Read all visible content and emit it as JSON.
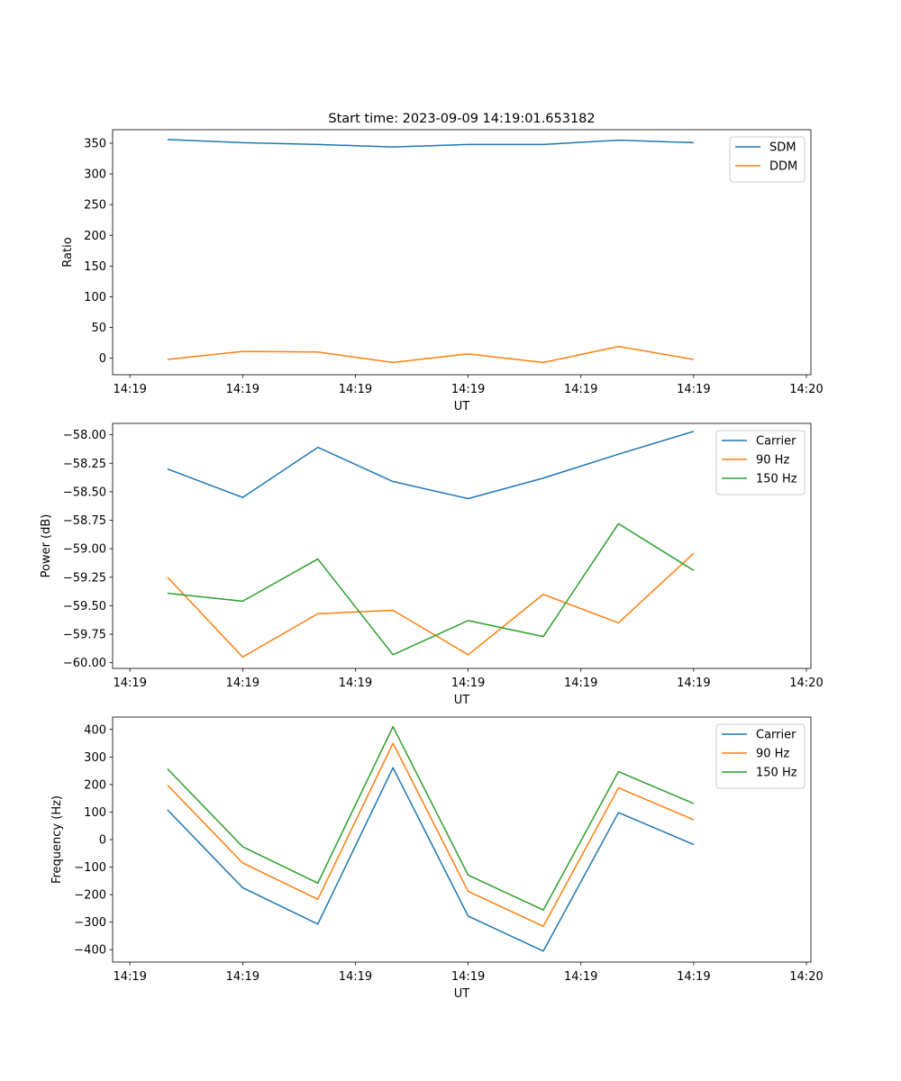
{
  "figure_title": "Start time: 2023-09-09 14:19:01.653182",
  "colors": {
    "blue": "#1f77b4",
    "orange": "#ff7f0e",
    "green": "#2ca02c"
  },
  "chart_data": [
    {
      "type": "line",
      "title": "Start time: 2023-09-09 14:19:01.653182",
      "xlabel": "UT",
      "ylabel": "Ratio",
      "x": [
        1,
        2,
        3,
        4,
        5,
        6,
        7,
        8
      ],
      "xlim": [
        0.27,
        9.56
      ],
      "xticks": [
        0.5,
        2,
        3.5,
        5,
        6.5,
        8,
        9.5
      ],
      "xtick_labels": [
        "14:19",
        "14:19",
        "14:19",
        "14:19",
        "14:19",
        "14:19",
        "14:20"
      ],
      "ylim": [
        -27,
        372
      ],
      "yticks": [
        0,
        50,
        100,
        150,
        200,
        250,
        300,
        350
      ],
      "ytick_labels": [
        "0",
        "50",
        "100",
        "150",
        "200",
        "250",
        "300",
        "350"
      ],
      "legend_position": "top-right",
      "series": [
        {
          "name": "SDM",
          "color": "#1f77b4",
          "values": [
            356,
            351,
            348,
            344,
            348,
            348,
            355,
            351
          ]
        },
        {
          "name": "DDM",
          "color": "#ff7f0e",
          "values": [
            -2,
            11,
            10,
            -7,
            7,
            -7,
            19,
            -2
          ]
        }
      ]
    },
    {
      "type": "line",
      "title": "",
      "xlabel": "UT",
      "ylabel": "Power (dB)",
      "x": [
        1,
        2,
        3,
        4,
        5,
        6,
        7,
        8
      ],
      "xlim": [
        0.27,
        9.56
      ],
      "xticks": [
        0.5,
        2,
        3.5,
        5,
        6.5,
        8,
        9.5
      ],
      "xtick_labels": [
        "14:19",
        "14:19",
        "14:19",
        "14:19",
        "14:19",
        "14:19",
        "14:20"
      ],
      "ylim": [
        -60.05,
        -57.9
      ],
      "yticks": [
        -60.0,
        -59.75,
        -59.5,
        -59.25,
        -59.0,
        -58.75,
        -58.5,
        -58.25,
        -58.0
      ],
      "ytick_labels": [
        "−60.00",
        "−59.75",
        "−59.50",
        "−59.25",
        "−59.00",
        "−58.75",
        "−58.50",
        "−58.25",
        "−58.00"
      ],
      "legend_position": "top-right",
      "series": [
        {
          "name": "Carrier",
          "color": "#1f77b4",
          "values": [
            -58.3,
            -58.55,
            -58.11,
            -58.41,
            -58.56,
            -58.38,
            -58.17,
            -57.97
          ]
        },
        {
          "name": "90 Hz",
          "color": "#ff7f0e",
          "values": [
            -59.25,
            -59.95,
            -59.57,
            -59.54,
            -59.93,
            -59.4,
            -59.65,
            -59.04
          ]
        },
        {
          "name": "150 Hz",
          "color": "#2ca02c",
          "values": [
            -59.39,
            -59.46,
            -59.09,
            -59.93,
            -59.63,
            -59.77,
            -58.78,
            -59.19
          ]
        }
      ]
    },
    {
      "type": "line",
      "title": "",
      "xlabel": "UT",
      "ylabel": "Frequency (Hz)",
      "x": [
        1,
        2,
        3,
        4,
        5,
        6,
        7,
        8
      ],
      "xlim": [
        0.27,
        9.56
      ],
      "xticks": [
        0.5,
        2,
        3.5,
        5,
        6.5,
        8,
        9.5
      ],
      "xtick_labels": [
        "14:19",
        "14:19",
        "14:19",
        "14:19",
        "14:19",
        "14:19",
        "14:20"
      ],
      "ylim": [
        -445,
        445
      ],
      "yticks": [
        -400,
        -300,
        -200,
        -100,
        0,
        100,
        200,
        300,
        400
      ],
      "ytick_labels": [
        "−400",
        "−300",
        "−200",
        "−100",
        "0",
        "100",
        "200",
        "300",
        "400"
      ],
      "legend_position": "top-right",
      "series": [
        {
          "name": "Carrier",
          "color": "#1f77b4",
          "values": [
            108,
            -175,
            -307,
            261,
            -278,
            -405,
            98,
            -18
          ]
        },
        {
          "name": "90 Hz",
          "color": "#ff7f0e",
          "values": [
            198,
            -85,
            -217,
            350,
            -188,
            -315,
            188,
            72
          ]
        },
        {
          "name": "150 Hz",
          "color": "#2ca02c",
          "values": [
            257,
            -26,
            -158,
            410,
            -129,
            -256,
            247,
            131
          ]
        }
      ]
    }
  ]
}
